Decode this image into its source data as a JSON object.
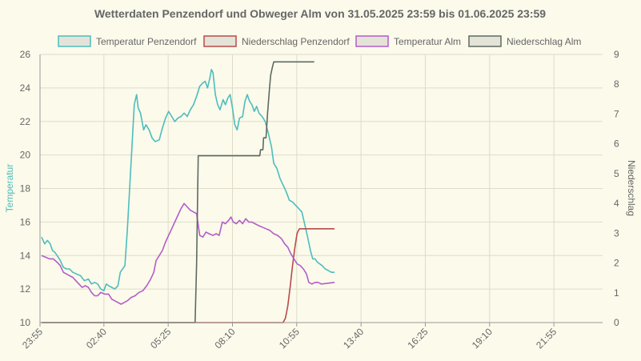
{
  "chart_data": {
    "type": "line",
    "title": "Wetterdaten Penzendorf und Obweger Alm von 31.05.2025 23:59 bis 01.06.2025 23:59",
    "ylabel_left": "Temperatur",
    "ylabel_right": "Niederschlag",
    "ylim_left": [
      10,
      26
    ],
    "ylim_right": [
      0,
      9
    ],
    "yticks_left": [
      "10",
      "12",
      "14",
      "16",
      "18",
      "20",
      "22",
      "24",
      "26"
    ],
    "yticks_right": [
      "0",
      "1",
      "2",
      "3",
      "4",
      "5",
      "6",
      "7",
      "8",
      "9"
    ],
    "xlim": [
      -4,
      1440
    ],
    "xticks": [
      {
        "t": -4,
        "label": "23:55"
      },
      {
        "t": 160,
        "label": "02:40"
      },
      {
        "t": 325,
        "label": "05:25"
      },
      {
        "t": 490,
        "label": "08:10"
      },
      {
        "t": 655,
        "label": "10:55"
      },
      {
        "t": 820,
        "label": "13:40"
      },
      {
        "t": 985,
        "label": "16:25"
      },
      {
        "t": 1150,
        "label": "19:10"
      },
      {
        "t": 1315,
        "label": "21:55"
      }
    ],
    "grid": true,
    "legend_position": "top",
    "series": [
      {
        "name": "Temperatur Penzendorf",
        "axis": "left",
        "color": "#4dbdbd",
        "points": [
          [
            0,
            15.1
          ],
          [
            8,
            14.7
          ],
          [
            15,
            14.9
          ],
          [
            22,
            14.7
          ],
          [
            28,
            14.3
          ],
          [
            34,
            14.2
          ],
          [
            40,
            14.0
          ],
          [
            48,
            13.7
          ],
          [
            56,
            13.3
          ],
          [
            64,
            13.2
          ],
          [
            72,
            13.2
          ],
          [
            80,
            13.0
          ],
          [
            90,
            12.9
          ],
          [
            100,
            12.8
          ],
          [
            110,
            12.5
          ],
          [
            120,
            12.6
          ],
          [
            128,
            12.3
          ],
          [
            136,
            12.4
          ],
          [
            144,
            12.3
          ],
          [
            152,
            12.0
          ],
          [
            160,
            11.9
          ],
          [
            166,
            12.3
          ],
          [
            172,
            12.2
          ],
          [
            180,
            12.1
          ],
          [
            188,
            12.0
          ],
          [
            196,
            12.2
          ],
          [
            202,
            13.0
          ],
          [
            208,
            13.2
          ],
          [
            214,
            13.4
          ],
          [
            220,
            15.5
          ],
          [
            226,
            18.0
          ],
          [
            232,
            20.5
          ],
          [
            238,
            23.0
          ],
          [
            244,
            23.6
          ],
          [
            248,
            22.8
          ],
          [
            254,
            22.5
          ],
          [
            262,
            21.5
          ],
          [
            268,
            21.8
          ],
          [
            276,
            21.5
          ],
          [
            284,
            21.0
          ],
          [
            292,
            20.8
          ],
          [
            302,
            20.9
          ],
          [
            310,
            21.6
          ],
          [
            318,
            22.2
          ],
          [
            326,
            22.6
          ],
          [
            334,
            22.3
          ],
          [
            342,
            22.0
          ],
          [
            350,
            22.2
          ],
          [
            358,
            22.3
          ],
          [
            366,
            22.5
          ],
          [
            374,
            22.3
          ],
          [
            382,
            22.7
          ],
          [
            390,
            23.0
          ],
          [
            398,
            23.5
          ],
          [
            406,
            24.1
          ],
          [
            414,
            24.3
          ],
          [
            420,
            24.4
          ],
          [
            426,
            24.0
          ],
          [
            432,
            24.6
          ],
          [
            436,
            25.1
          ],
          [
            440,
            24.9
          ],
          [
            446,
            23.6
          ],
          [
            452,
            23.0
          ],
          [
            458,
            22.7
          ],
          [
            466,
            23.3
          ],
          [
            472,
            23.0
          ],
          [
            478,
            23.4
          ],
          [
            484,
            23.6
          ],
          [
            490,
            22.8
          ],
          [
            496,
            21.8
          ],
          [
            502,
            21.5
          ],
          [
            508,
            22.2
          ],
          [
            516,
            22.3
          ],
          [
            522,
            23.2
          ],
          [
            528,
            23.6
          ],
          [
            534,
            23.2
          ],
          [
            540,
            23.0
          ],
          [
            546,
            22.6
          ],
          [
            552,
            22.9
          ],
          [
            558,
            22.5
          ],
          [
            566,
            22.3
          ],
          [
            574,
            22.0
          ],
          [
            582,
            21.3
          ],
          [
            590,
            20.5
          ],
          [
            596,
            19.5
          ],
          [
            604,
            19.2
          ],
          [
            612,
            18.6
          ],
          [
            620,
            18.2
          ],
          [
            628,
            17.8
          ],
          [
            636,
            17.3
          ],
          [
            644,
            17.2
          ],
          [
            652,
            17.0
          ],
          [
            660,
            16.8
          ],
          [
            668,
            16.6
          ],
          [
            676,
            15.8
          ],
          [
            684,
            15.0
          ],
          [
            690,
            14.3
          ],
          [
            696,
            13.8
          ],
          [
            702,
            13.8
          ],
          [
            708,
            13.6
          ],
          [
            714,
            13.5
          ],
          [
            720,
            13.4
          ],
          [
            728,
            13.2
          ],
          [
            736,
            13.1
          ],
          [
            744,
            13.0
          ],
          [
            752,
            13.0
          ]
        ]
      },
      {
        "name": "Niederschlag Penzendorf",
        "axis": "right",
        "color": "#b94a48",
        "points": [
          [
            0,
            0
          ],
          [
            620,
            0
          ],
          [
            626,
            0.15
          ],
          [
            632,
            0.55
          ],
          [
            638,
            1.2
          ],
          [
            644,
            1.9
          ],
          [
            650,
            2.5
          ],
          [
            656,
            3.0
          ],
          [
            662,
            3.15
          ],
          [
            752,
            3.15
          ]
        ]
      },
      {
        "name": "Temperatur Alm",
        "axis": "left",
        "color": "#b45cc8",
        "points": [
          [
            0,
            14.0
          ],
          [
            10,
            13.9
          ],
          [
            20,
            13.8
          ],
          [
            30,
            13.8
          ],
          [
            40,
            13.6
          ],
          [
            48,
            13.4
          ],
          [
            56,
            13.0
          ],
          [
            64,
            12.9
          ],
          [
            72,
            12.8
          ],
          [
            80,
            12.7
          ],
          [
            88,
            12.5
          ],
          [
            96,
            12.3
          ],
          [
            104,
            12.1
          ],
          [
            112,
            12.2
          ],
          [
            120,
            12.1
          ],
          [
            128,
            11.8
          ],
          [
            136,
            11.6
          ],
          [
            144,
            11.6
          ],
          [
            152,
            11.8
          ],
          [
            162,
            11.7
          ],
          [
            172,
            11.7
          ],
          [
            180,
            11.4
          ],
          [
            188,
            11.3
          ],
          [
            196,
            11.2
          ],
          [
            204,
            11.1
          ],
          [
            212,
            11.2
          ],
          [
            220,
            11.3
          ],
          [
            230,
            11.5
          ],
          [
            240,
            11.6
          ],
          [
            250,
            11.8
          ],
          [
            260,
            11.9
          ],
          [
            270,
            12.2
          ],
          [
            280,
            12.6
          ],
          [
            288,
            13.0
          ],
          [
            294,
            13.7
          ],
          [
            302,
            14.0
          ],
          [
            310,
            14.3
          ],
          [
            318,
            14.8
          ],
          [
            326,
            15.2
          ],
          [
            334,
            15.6
          ],
          [
            342,
            16.0
          ],
          [
            350,
            16.4
          ],
          [
            358,
            16.8
          ],
          [
            366,
            17.1
          ],
          [
            374,
            16.9
          ],
          [
            382,
            16.7
          ],
          [
            390,
            16.6
          ],
          [
            398,
            16.5
          ],
          [
            406,
            15.2
          ],
          [
            414,
            15.1
          ],
          [
            422,
            15.4
          ],
          [
            430,
            15.3
          ],
          [
            440,
            15.2
          ],
          [
            448,
            15.3
          ],
          [
            456,
            15.2
          ],
          [
            464,
            16.0
          ],
          [
            472,
            15.9
          ],
          [
            480,
            16.1
          ],
          [
            486,
            16.3
          ],
          [
            492,
            16.0
          ],
          [
            500,
            15.9
          ],
          [
            508,
            16.1
          ],
          [
            516,
            15.9
          ],
          [
            524,
            16.2
          ],
          [
            532,
            16.0
          ],
          [
            540,
            16.0
          ],
          [
            548,
            15.9
          ],
          [
            556,
            15.8
          ],
          [
            566,
            15.7
          ],
          [
            576,
            15.6
          ],
          [
            586,
            15.5
          ],
          [
            596,
            15.3
          ],
          [
            606,
            15.2
          ],
          [
            616,
            15.0
          ],
          [
            624,
            14.7
          ],
          [
            632,
            14.5
          ],
          [
            640,
            14.1
          ],
          [
            648,
            13.8
          ],
          [
            656,
            13.5
          ],
          [
            664,
            13.4
          ],
          [
            672,
            13.2
          ],
          [
            680,
            12.9
          ],
          [
            686,
            12.4
          ],
          [
            694,
            12.3
          ],
          [
            702,
            12.4
          ],
          [
            710,
            12.4
          ],
          [
            718,
            12.3
          ],
          [
            752,
            12.4
          ]
        ]
      },
      {
        "name": "Niederschlag Alm",
        "axis": "right",
        "color": "#5f6a62",
        "points": [
          [
            0,
            0
          ],
          [
            394,
            0
          ],
          [
            398,
            2.0
          ],
          [
            402,
            5.6
          ],
          [
            560,
            5.6
          ],
          [
            562,
            5.8
          ],
          [
            568,
            5.8
          ],
          [
            570,
            6.2
          ],
          [
            576,
            6.2
          ],
          [
            580,
            7.0
          ],
          [
            584,
            7.7
          ],
          [
            588,
            8.3
          ],
          [
            592,
            8.55
          ],
          [
            596,
            8.75
          ],
          [
            700,
            8.75
          ]
        ]
      }
    ]
  }
}
